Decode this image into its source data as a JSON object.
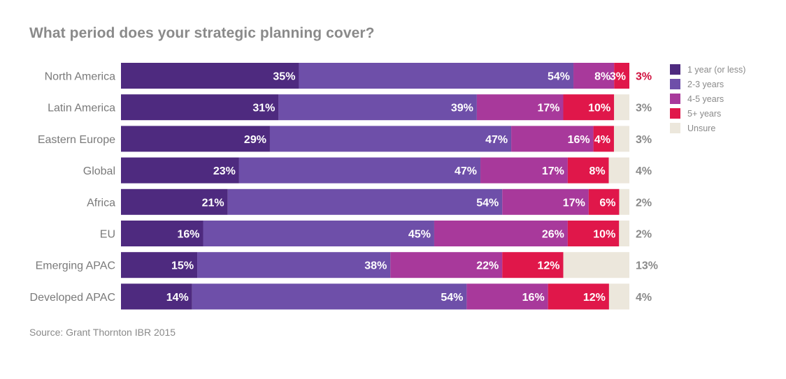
{
  "title": "What period does your strategic planning cover?",
  "source": "Source: Grant Thornton IBR 2015",
  "colors": {
    "one_year": "#4e2a7f",
    "two_three": "#6e4fa9",
    "four_five": "#a8399b",
    "five_plus": "#e0174a",
    "unsure": "#ece7dc",
    "highlight_outside": "#d0123f"
  },
  "legend": [
    {
      "label": "1 year (or less)",
      "color": "#4e2a7f"
    },
    {
      "label": "2-3 years",
      "color": "#6e4fa9"
    },
    {
      "label": "4-5 years",
      "color": "#a8399b"
    },
    {
      "label": "5+ years",
      "color": "#e0174a"
    },
    {
      "label": "Unsure",
      "color": "#ece7dc"
    }
  ],
  "chart_data": {
    "type": "bar",
    "orientation": "horizontal",
    "stacked": true,
    "title": "What period does your strategic planning cover?",
    "categories": [
      "North America",
      "Latin America",
      "Eastern Europe",
      "Global",
      "Africa",
      "EU",
      "Emerging APAC",
      "Developed APAC"
    ],
    "series": [
      {
        "name": "1 year (or less)",
        "values": [
          35,
          31,
          29,
          23,
          21,
          16,
          15,
          14
        ],
        "labels": [
          "35%",
          "31%",
          "29%",
          "23%",
          "21%",
          "16%",
          "15%",
          "14%"
        ]
      },
      {
        "name": "2-3 years",
        "values": [
          54,
          39,
          47,
          47,
          54,
          45,
          38,
          54
        ],
        "labels": [
          "54%",
          "39%",
          "47%",
          "47%",
          "54%",
          "45%",
          "38%",
          "54%"
        ]
      },
      {
        "name": "4-5 years",
        "values": [
          8,
          17,
          16,
          17,
          17,
          26,
          22,
          16
        ],
        "labels": [
          "8%",
          "17%",
          "16%",
          "17%",
          "17%",
          "26%",
          "22%",
          "16%"
        ]
      },
      {
        "name": "5+ years",
        "values": [
          3,
          10,
          4,
          8,
          6,
          10,
          12,
          12
        ],
        "labels": [
          "3%",
          "10%",
          "4%",
          "8%",
          "6%",
          "10%",
          "12%",
          "12%"
        ]
      },
      {
        "name": "Unsure",
        "values": [
          0,
          3,
          3,
          4,
          2,
          2,
          13,
          4
        ],
        "labels": [
          "",
          "3%",
          "3%",
          "4%",
          "2%",
          "2%",
          "13%",
          "4%"
        ]
      }
    ],
    "outside_labels": [
      "3%",
      "3%",
      "3%",
      "4%",
      "2%",
      "2%",
      "13%",
      "4%"
    ],
    "xlim": [
      0,
      100
    ],
    "legend_position": "right"
  }
}
